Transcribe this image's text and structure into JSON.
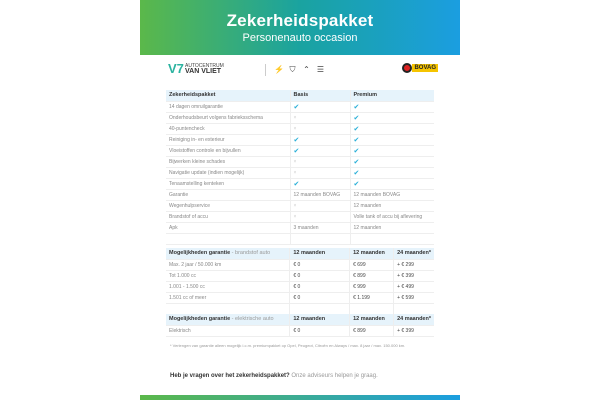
{
  "header": {
    "title": "Zekerheidspakket",
    "subtitle": "Personenauto occasion"
  },
  "logos": {
    "dealer_line1": "AUTOCENTRUM",
    "dealer_line2": "VAN VLIET",
    "brands": [
      "Opel",
      "Peugeot",
      "Citroën",
      "DS"
    ],
    "certification": "BOVAG"
  },
  "colors": {
    "gradient_start": "#5bb84a",
    "gradient_end": "#1b9ee0",
    "check": "#2bb0d8"
  },
  "package_table": {
    "headers": [
      "Zekerheidspakket",
      "Basis",
      "Premium"
    ],
    "rows": [
      [
        "14 dagen omruilgarantie",
        "check",
        "check"
      ],
      [
        "Onderhoudsbeurt volgens fabrieksschema",
        "cross",
        "check"
      ],
      [
        "40-puntencheck",
        "cross",
        "check"
      ],
      [
        "Reiniging in- en exterieur",
        "check",
        "check"
      ],
      [
        "Vloeistoffen controle en bijvullen",
        "check",
        "check"
      ],
      [
        "Bijwerken kleine schades",
        "cross",
        "check"
      ],
      [
        "Navigatie update (indien mogelijk)",
        "cross",
        "check"
      ],
      [
        "Tenaamstelling kenteken",
        "check",
        "check"
      ],
      [
        "Garantie",
        "12 maanden BOVAG",
        "12 maanden BOVAG"
      ],
      [
        "Wegenhulpservice",
        "cross",
        "12 maanden"
      ],
      [
        "Brandstof of accu",
        "cross",
        "Volle tank of accu bij aflevering"
      ],
      [
        "Apk",
        "3 maanden",
        "12 maanden"
      ]
    ]
  },
  "fuel_table": {
    "title": "Mogelijkheden garantie",
    "subtitle": "- brandstof auto",
    "headers": [
      "12 maanden",
      "12 maanden",
      "24 maanden*"
    ],
    "rows": [
      [
        "Max. 2 jaar / 50.000 km",
        "€ 0",
        "€ 699",
        "+ € 299"
      ],
      [
        "Tot 1.000 cc",
        "€ 0",
        "€ 899",
        "+ € 399"
      ],
      [
        "1.001 - 1.500 cc",
        "€ 0",
        "€ 999",
        "+ € 499"
      ],
      [
        "1.501 cc of meer",
        "€ 0",
        "€ 1.199",
        "+ € 599"
      ]
    ]
  },
  "electric_table": {
    "title": "Mogelijkheden garantie",
    "subtitle": "- elektrische auto",
    "headers": [
      "12 maanden",
      "12 maanden",
      "24 maanden*"
    ],
    "rows": [
      [
        "Elektrisch",
        "€ 0",
        "€ 899",
        "+ € 399"
      ]
    ]
  },
  "footnote": "* Verlengen van garantie alleen mogelijk i.c.m. premiumpakket op Opel, Peugeot, Citroën en Always / max. 8 jaar / max. 150.000 km.",
  "question": {
    "bold": "Heb je vragen over het zekerheidspakket?",
    "text": " Onze adviseurs helpen je graag."
  }
}
